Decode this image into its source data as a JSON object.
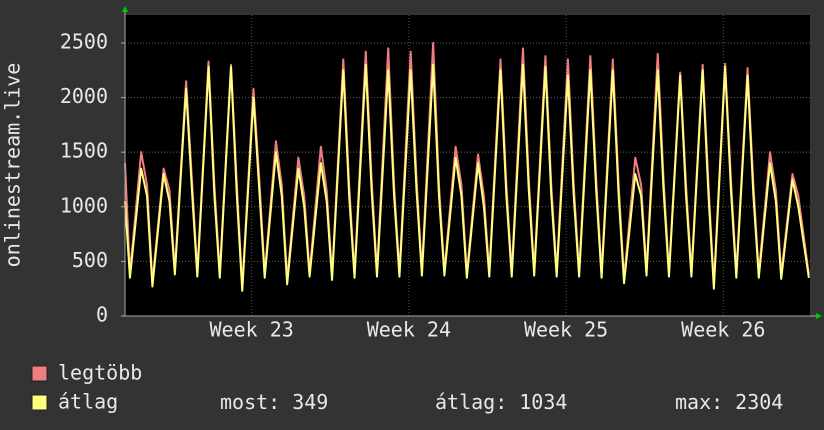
{
  "chart_data": {
    "type": "line",
    "y_axis_label": "onlinestream.live",
    "x": [
      0,
      0.22,
      0.72,
      0.98,
      1.22,
      1.72,
      1.98,
      2.22,
      2.72,
      2.98,
      3.22,
      3.72,
      3.98,
      4.22,
      4.72,
      4.98,
      5.22,
      5.72,
      5.98,
      6.22,
      6.72,
      6.98,
      7.22,
      7.72,
      7.98,
      8.22,
      8.72,
      8.98,
      9.22,
      9.72,
      9.98,
      10.22,
      10.72,
      10.98,
      11.22,
      11.72,
      11.98,
      12.22,
      12.72,
      12.98,
      13.22,
      13.72,
      13.98,
      14.22,
      14.72,
      14.98,
      15.22,
      15.72,
      15.98,
      16.22,
      16.72,
      16.98,
      17.22,
      17.72,
      17.98,
      18.22,
      18.72,
      18.98,
      19.22,
      19.72,
      19.98,
      20.22,
      20.72,
      20.98,
      21.22,
      21.72,
      21.98,
      22.22,
      22.72,
      22.98,
      23.22,
      23.72,
      23.98,
      24.22,
      24.72,
      24.98,
      25.22,
      25.72,
      25.98,
      26.22,
      26.72,
      26.98,
      27.22,
      27.72,
      27.98,
      28.22,
      28.72,
      28.98,
      29.22,
      29.72,
      29.98,
      30.45
    ],
    "series": [
      {
        "name": "legtöbb",
        "color": "#f07e80",
        "values": [
          1400,
          390,
          1500,
          1200,
          310,
          1350,
          1150,
          420,
          2150,
          1250,
          400,
          2330,
          1200,
          390,
          2300,
          1200,
          270,
          2080,
          1250,
          390,
          1600,
          1200,
          330,
          1450,
          1100,
          400,
          1550,
          1150,
          370,
          2350,
          1200,
          390,
          2420,
          1250,
          400,
          2450,
          1200,
          400,
          2420,
          1250,
          410,
          2500,
          1200,
          410,
          1550,
          1200,
          390,
          1480,
          1100,
          400,
          2350,
          1200,
          400,
          2450,
          1250,
          410,
          2380,
          1200,
          400,
          2350,
          1200,
          400,
          2380,
          1250,
          390,
          2350,
          1200,
          340,
          1450,
          1200,
          410,
          2400,
          1250,
          400,
          2230,
          1200,
          400,
          2300,
          1200,
          290,
          2310,
          1250,
          390,
          2270,
          1200,
          390,
          1500,
          1150,
          380,
          1300,
          1100,
          380
        ]
      },
      {
        "name": "átlag",
        "color": "#ffff80",
        "values": [
          1050,
          350,
          1350,
          1100,
          270,
          1300,
          1050,
          380,
          2080,
          1150,
          360,
          2280,
          1100,
          350,
          2280,
          1100,
          230,
          2000,
          1150,
          350,
          1500,
          1100,
          290,
          1350,
          1000,
          360,
          1400,
          1050,
          330,
          2250,
          1100,
          350,
          2300,
          1150,
          360,
          2250,
          1100,
          360,
          2250,
          1150,
          370,
          2300,
          1100,
          370,
          1450,
          1100,
          350,
          1400,
          1000,
          360,
          2250,
          1100,
          360,
          2300,
          1150,
          370,
          2280,
          1100,
          360,
          2200,
          1100,
          360,
          2250,
          1150,
          350,
          2250,
          1100,
          300,
          1300,
          1100,
          370,
          2250,
          1150,
          360,
          2200,
          1100,
          360,
          2250,
          1100,
          250,
          2280,
          1150,
          350,
          2200,
          1100,
          350,
          1400,
          1050,
          340,
          1250,
          1000,
          349
        ]
      }
    ],
    "legend_stats": [
      {
        "label": "most:",
        "value": 349
      },
      {
        "label": "átlag:",
        "value": 1034
      },
      {
        "label": "max:",
        "value": 2304
      }
    ],
    "xlim": [
      0,
      30.5
    ],
    "xticks": [
      {
        "value": 5.64,
        "label": "Week 23"
      },
      {
        "value": 12.64,
        "label": "Week 24"
      },
      {
        "value": 19.64,
        "label": "Week 25"
      },
      {
        "value": 26.64,
        "label": "Week 26"
      }
    ],
    "ylim": [
      0,
      2756
    ],
    "yticks": [
      0,
      500,
      1000,
      1500,
      2000,
      2500
    ],
    "grid": true
  }
}
